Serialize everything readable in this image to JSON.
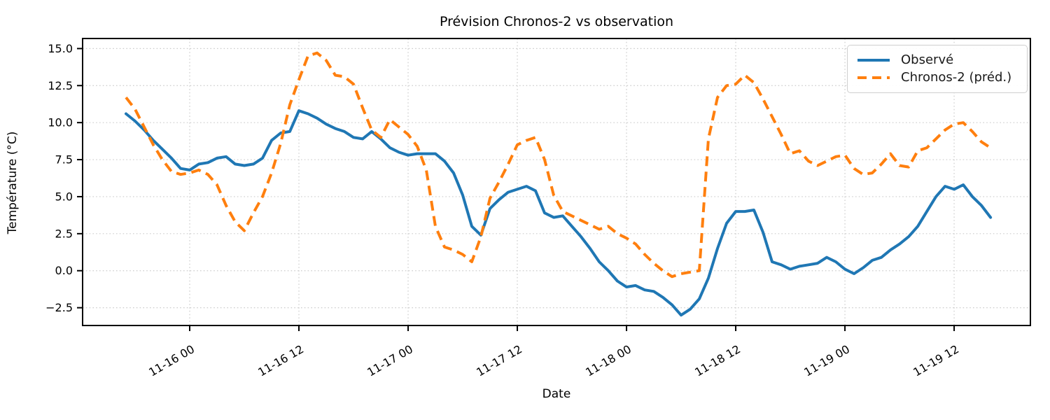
{
  "figure": {
    "title": "Prévision Chronos-2 vs observation",
    "xlabel": "Date",
    "ylabel": "Température (°C)"
  },
  "legend": {
    "position": "upper right",
    "items": [
      {
        "label": "Observé",
        "color": "#1f77b4",
        "line_style": "solid"
      },
      {
        "label": "Chronos-2 (préd.)",
        "color": "#ff7f0e",
        "line_style": "dashed"
      }
    ]
  },
  "chart_data": {
    "type": "line",
    "title": "Prévision Chronos-2 vs observation",
    "xlabel": "Date",
    "ylabel": "Température (°C)",
    "grid": true,
    "grid_style": "dotted",
    "legend_position": "upper right",
    "x_unit": "hours",
    "x_start_label": "11-15 17:00",
    "x_start_hours_offset": -7,
    "x_step_hours": 1,
    "xlim_hours": [
      -11.77,
      92.38
    ],
    "ylim": [
      -3.7,
      15.68
    ],
    "xtick_hours": [
      0,
      12,
      24,
      36,
      48,
      60,
      72,
      84
    ],
    "xtick_labels": [
      "11-16 00",
      "11-16 12",
      "11-17 00",
      "11-17 12",
      "11-18 00",
      "11-18 12",
      "11-19 00",
      "11-19 12"
    ],
    "ytick_values": [
      15.0,
      12.5,
      10.0,
      7.5,
      5.0,
      2.5,
      0.0,
      -2.5
    ],
    "ytick_labels": [
      "15.0",
      "12.5",
      "10.0",
      "7.5",
      "5.0",
      "2.5",
      "0.0",
      "−2.5"
    ],
    "series": [
      {
        "name": "Observé",
        "color": "#1f77b4",
        "line_style": "solid",
        "line_width": 4,
        "values": [
          10.6,
          10.1,
          9.5,
          8.8,
          8.2,
          7.6,
          6.9,
          6.8,
          7.2,
          7.3,
          7.6,
          7.7,
          7.2,
          7.1,
          7.2,
          7.6,
          8.8,
          9.3,
          9.4,
          10.8,
          10.6,
          10.3,
          9.9,
          9.6,
          9.4,
          9.0,
          8.9,
          9.4,
          8.9,
          8.3,
          8.0,
          7.8,
          7.9,
          7.9,
          7.9,
          7.4,
          6.6,
          5.1,
          3.0,
          2.4,
          4.2,
          4.8,
          5.3,
          5.5,
          5.7,
          5.4,
          3.9,
          3.6,
          3.7,
          3.0,
          2.3,
          1.5,
          0.6,
          0.0,
          -0.7,
          -1.1,
          -1.0,
          -1.3,
          -1.4,
          -1.8,
          -2.3,
          -3.0,
          -2.6,
          -1.9,
          -0.5,
          1.5,
          3.2,
          4.0,
          4.0,
          4.1,
          2.6,
          0.6,
          0.4,
          0.1,
          0.3,
          0.4,
          0.5,
          0.9,
          0.6,
          0.1,
          -0.2,
          0.2,
          0.7,
          0.9,
          1.4,
          1.8,
          2.3,
          3.0,
          4.0,
          5.0,
          5.7,
          5.5,
          5.8,
          5.0,
          4.4,
          3.6
        ]
      },
      {
        "name": "Chronos-2 (préd.)",
        "color": "#ff7f0e",
        "line_style": "dashed",
        "line_width": 4,
        "values": [
          11.7,
          10.9,
          9.7,
          8.5,
          7.5,
          6.7,
          6.5,
          6.6,
          6.8,
          6.5,
          5.8,
          4.4,
          3.3,
          2.7,
          3.9,
          5.0,
          6.6,
          8.6,
          11.2,
          12.9,
          14.5,
          14.7,
          14.2,
          13.2,
          13.1,
          12.6,
          11.0,
          9.5,
          9.0,
          10.2,
          9.7,
          9.2,
          8.4,
          6.8,
          3.0,
          1.6,
          1.4,
          1.1,
          0.6,
          2.3,
          4.9,
          6.0,
          7.2,
          8.5,
          8.8,
          9.0,
          7.5,
          5.1,
          4.0,
          3.7,
          3.4,
          3.1,
          2.8,
          3.0,
          2.5,
          2.2,
          1.8,
          1.1,
          0.5,
          0.0,
          -0.4,
          -0.2,
          -0.1,
          0.0,
          8.9,
          11.7,
          12.5,
          12.6,
          13.2,
          12.7,
          11.6,
          10.4,
          9.2,
          7.9,
          8.1,
          7.4,
          7.1,
          7.4,
          7.7,
          7.8,
          6.9,
          6.5,
          6.6,
          7.2,
          7.9,
          7.1,
          7.0,
          8.1,
          8.3,
          8.9,
          9.5,
          9.9,
          10.0,
          9.4,
          8.7,
          8.3
        ]
      }
    ]
  }
}
